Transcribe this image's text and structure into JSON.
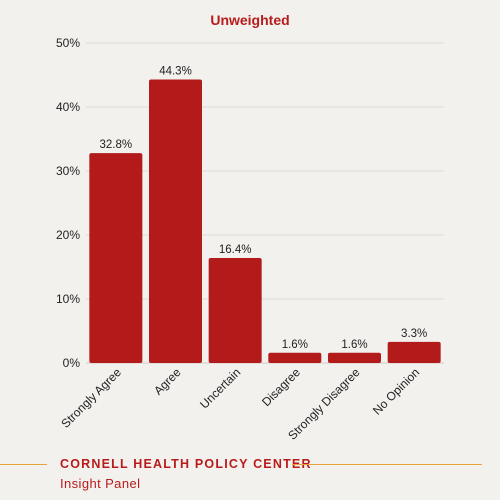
{
  "chart_data": {
    "type": "bar",
    "title": "Unweighted",
    "categories": [
      "Strongly Agree",
      "Agree",
      "Uncertain",
      "Disagree",
      "Strongly Disagree",
      "No Opinion"
    ],
    "values": [
      32.8,
      44.3,
      16.4,
      1.6,
      1.6,
      3.3
    ],
    "value_labels": [
      "32.8%",
      "44.3%",
      "16.4%",
      "1.6%",
      "1.6%",
      "3.3%"
    ],
    "y_ticks": [
      "0%",
      "10%",
      "20%",
      "30%",
      "40%",
      "50%"
    ],
    "ylim": [
      0,
      50
    ],
    "grid": true,
    "bar_color": "#b31b1b"
  },
  "footer": {
    "organization": "CORNELL HEALTH POLICY CENTER",
    "subtitle": "Insight Panel",
    "accent_color": "#e8a23a"
  }
}
